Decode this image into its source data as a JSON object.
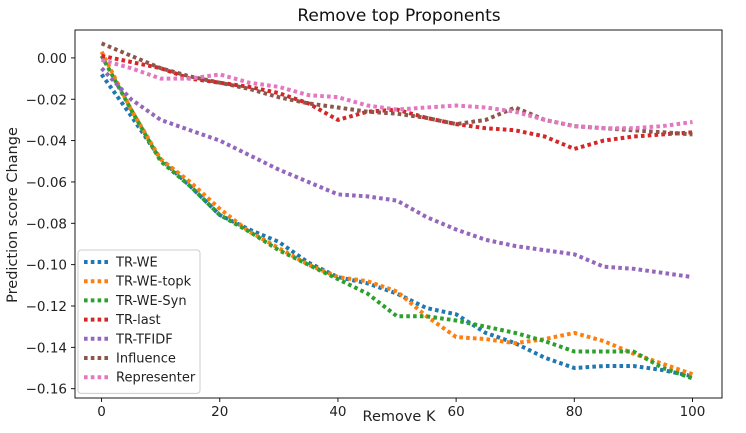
{
  "chart_data": {
    "type": "line",
    "title": "Remove top Proponents",
    "xlabel": "Remove K",
    "ylabel": "Prediction score Change",
    "xlim": [
      -4.5,
      105
    ],
    "ylim": [
      -0.1645,
      0.0135
    ],
    "xticks": [
      0,
      20,
      40,
      60,
      80,
      100
    ],
    "xtick_labels": [
      "0",
      "20",
      "40",
      "60",
      "80",
      "100"
    ],
    "yticks": [
      0.0,
      -0.02,
      -0.04,
      -0.06,
      -0.08,
      -0.1,
      -0.12,
      -0.14,
      -0.16
    ],
    "ytick_labels": [
      "0.00",
      "−0.02",
      "−0.04",
      "−0.06",
      "−0.08",
      "−0.10",
      "−0.12",
      "−0.14",
      "−0.16"
    ],
    "grid": false,
    "legend_position": "lower-left",
    "line_style": "dotted",
    "series": [
      {
        "name": "TR-WE",
        "color": "#1f77b4",
        "x": [
          0,
          5,
          10,
          15,
          20,
          25,
          30,
          35,
          40,
          45,
          50,
          55,
          60,
          65,
          70,
          75,
          80,
          85,
          90,
          95,
          100
        ],
        "y": [
          -0.008,
          -0.028,
          -0.049,
          -0.062,
          -0.076,
          -0.083,
          -0.089,
          -0.099,
          -0.106,
          -0.109,
          -0.114,
          -0.121,
          -0.124,
          -0.133,
          -0.138,
          -0.145,
          -0.15,
          -0.149,
          -0.149,
          -0.151,
          -0.154
        ]
      },
      {
        "name": "TR-WE-topk",
        "color": "#ff7f0e",
        "x": [
          0,
          5,
          10,
          15,
          20,
          25,
          30,
          35,
          40,
          45,
          50,
          55,
          60,
          65,
          70,
          75,
          80,
          85,
          90,
          95,
          100
        ],
        "y": [
          0.003,
          -0.025,
          -0.049,
          -0.06,
          -0.073,
          -0.084,
          -0.092,
          -0.1,
          -0.106,
          -0.108,
          -0.113,
          -0.125,
          -0.135,
          -0.136,
          -0.138,
          -0.136,
          -0.133,
          -0.137,
          -0.143,
          -0.148,
          -0.153
        ]
      },
      {
        "name": "TR-WE-Syn",
        "color": "#2ca02c",
        "x": [
          0,
          5,
          10,
          15,
          20,
          25,
          30,
          35,
          40,
          45,
          50,
          55,
          60,
          65,
          70,
          75,
          80,
          85,
          90,
          95,
          100
        ],
        "y": [
          0.001,
          -0.025,
          -0.05,
          -0.062,
          -0.076,
          -0.084,
          -0.093,
          -0.1,
          -0.107,
          -0.114,
          -0.125,
          -0.125,
          -0.127,
          -0.13,
          -0.133,
          -0.137,
          -0.142,
          -0.142,
          -0.142,
          -0.15,
          -0.155
        ]
      },
      {
        "name": "TR-last",
        "color": "#d62728",
        "x": [
          0,
          5,
          10,
          15,
          20,
          25,
          30,
          35,
          40,
          45,
          50,
          55,
          60,
          65,
          70,
          75,
          80,
          85,
          90,
          95,
          100
        ],
        "y": [
          0.001,
          -0.002,
          -0.005,
          -0.01,
          -0.012,
          -0.014,
          -0.017,
          -0.022,
          -0.03,
          -0.026,
          -0.025,
          -0.029,
          -0.032,
          -0.034,
          -0.035,
          -0.038,
          -0.044,
          -0.04,
          -0.038,
          -0.037,
          -0.036
        ]
      },
      {
        "name": "TR-TFIDF",
        "color": "#9467bd",
        "x": [
          0,
          5,
          10,
          15,
          20,
          25,
          30,
          35,
          40,
          45,
          50,
          55,
          60,
          65,
          70,
          75,
          80,
          85,
          90,
          95,
          100
        ],
        "y": [
          -0.005,
          -0.02,
          -0.03,
          -0.035,
          -0.04,
          -0.047,
          -0.054,
          -0.06,
          -0.066,
          -0.067,
          -0.069,
          -0.077,
          -0.083,
          -0.088,
          -0.091,
          -0.093,
          -0.095,
          -0.101,
          -0.102,
          -0.104,
          -0.106
        ]
      },
      {
        "name": "Influence",
        "color": "#8c564b",
        "x": [
          0,
          5,
          10,
          15,
          20,
          25,
          30,
          35,
          40,
          45,
          50,
          55,
          60,
          65,
          70,
          75,
          80,
          85,
          90,
          95,
          100
        ],
        "y": [
          0.007,
          0.001,
          -0.005,
          -0.009,
          -0.012,
          -0.015,
          -0.019,
          -0.022,
          -0.024,
          -0.026,
          -0.027,
          -0.029,
          -0.032,
          -0.03,
          -0.024,
          -0.03,
          -0.033,
          -0.034,
          -0.035,
          -0.036,
          -0.037
        ]
      },
      {
        "name": "Representer",
        "color": "#e377c2",
        "x": [
          0,
          5,
          10,
          15,
          20,
          25,
          30,
          35,
          40,
          45,
          50,
          55,
          60,
          65,
          70,
          75,
          80,
          85,
          90,
          95,
          100
        ],
        "y": [
          -0.001,
          -0.005,
          -0.01,
          -0.01,
          -0.008,
          -0.012,
          -0.014,
          -0.018,
          -0.019,
          -0.023,
          -0.025,
          -0.024,
          -0.023,
          -0.024,
          -0.026,
          -0.03,
          -0.033,
          -0.034,
          -0.034,
          -0.033,
          -0.031
        ]
      }
    ]
  }
}
